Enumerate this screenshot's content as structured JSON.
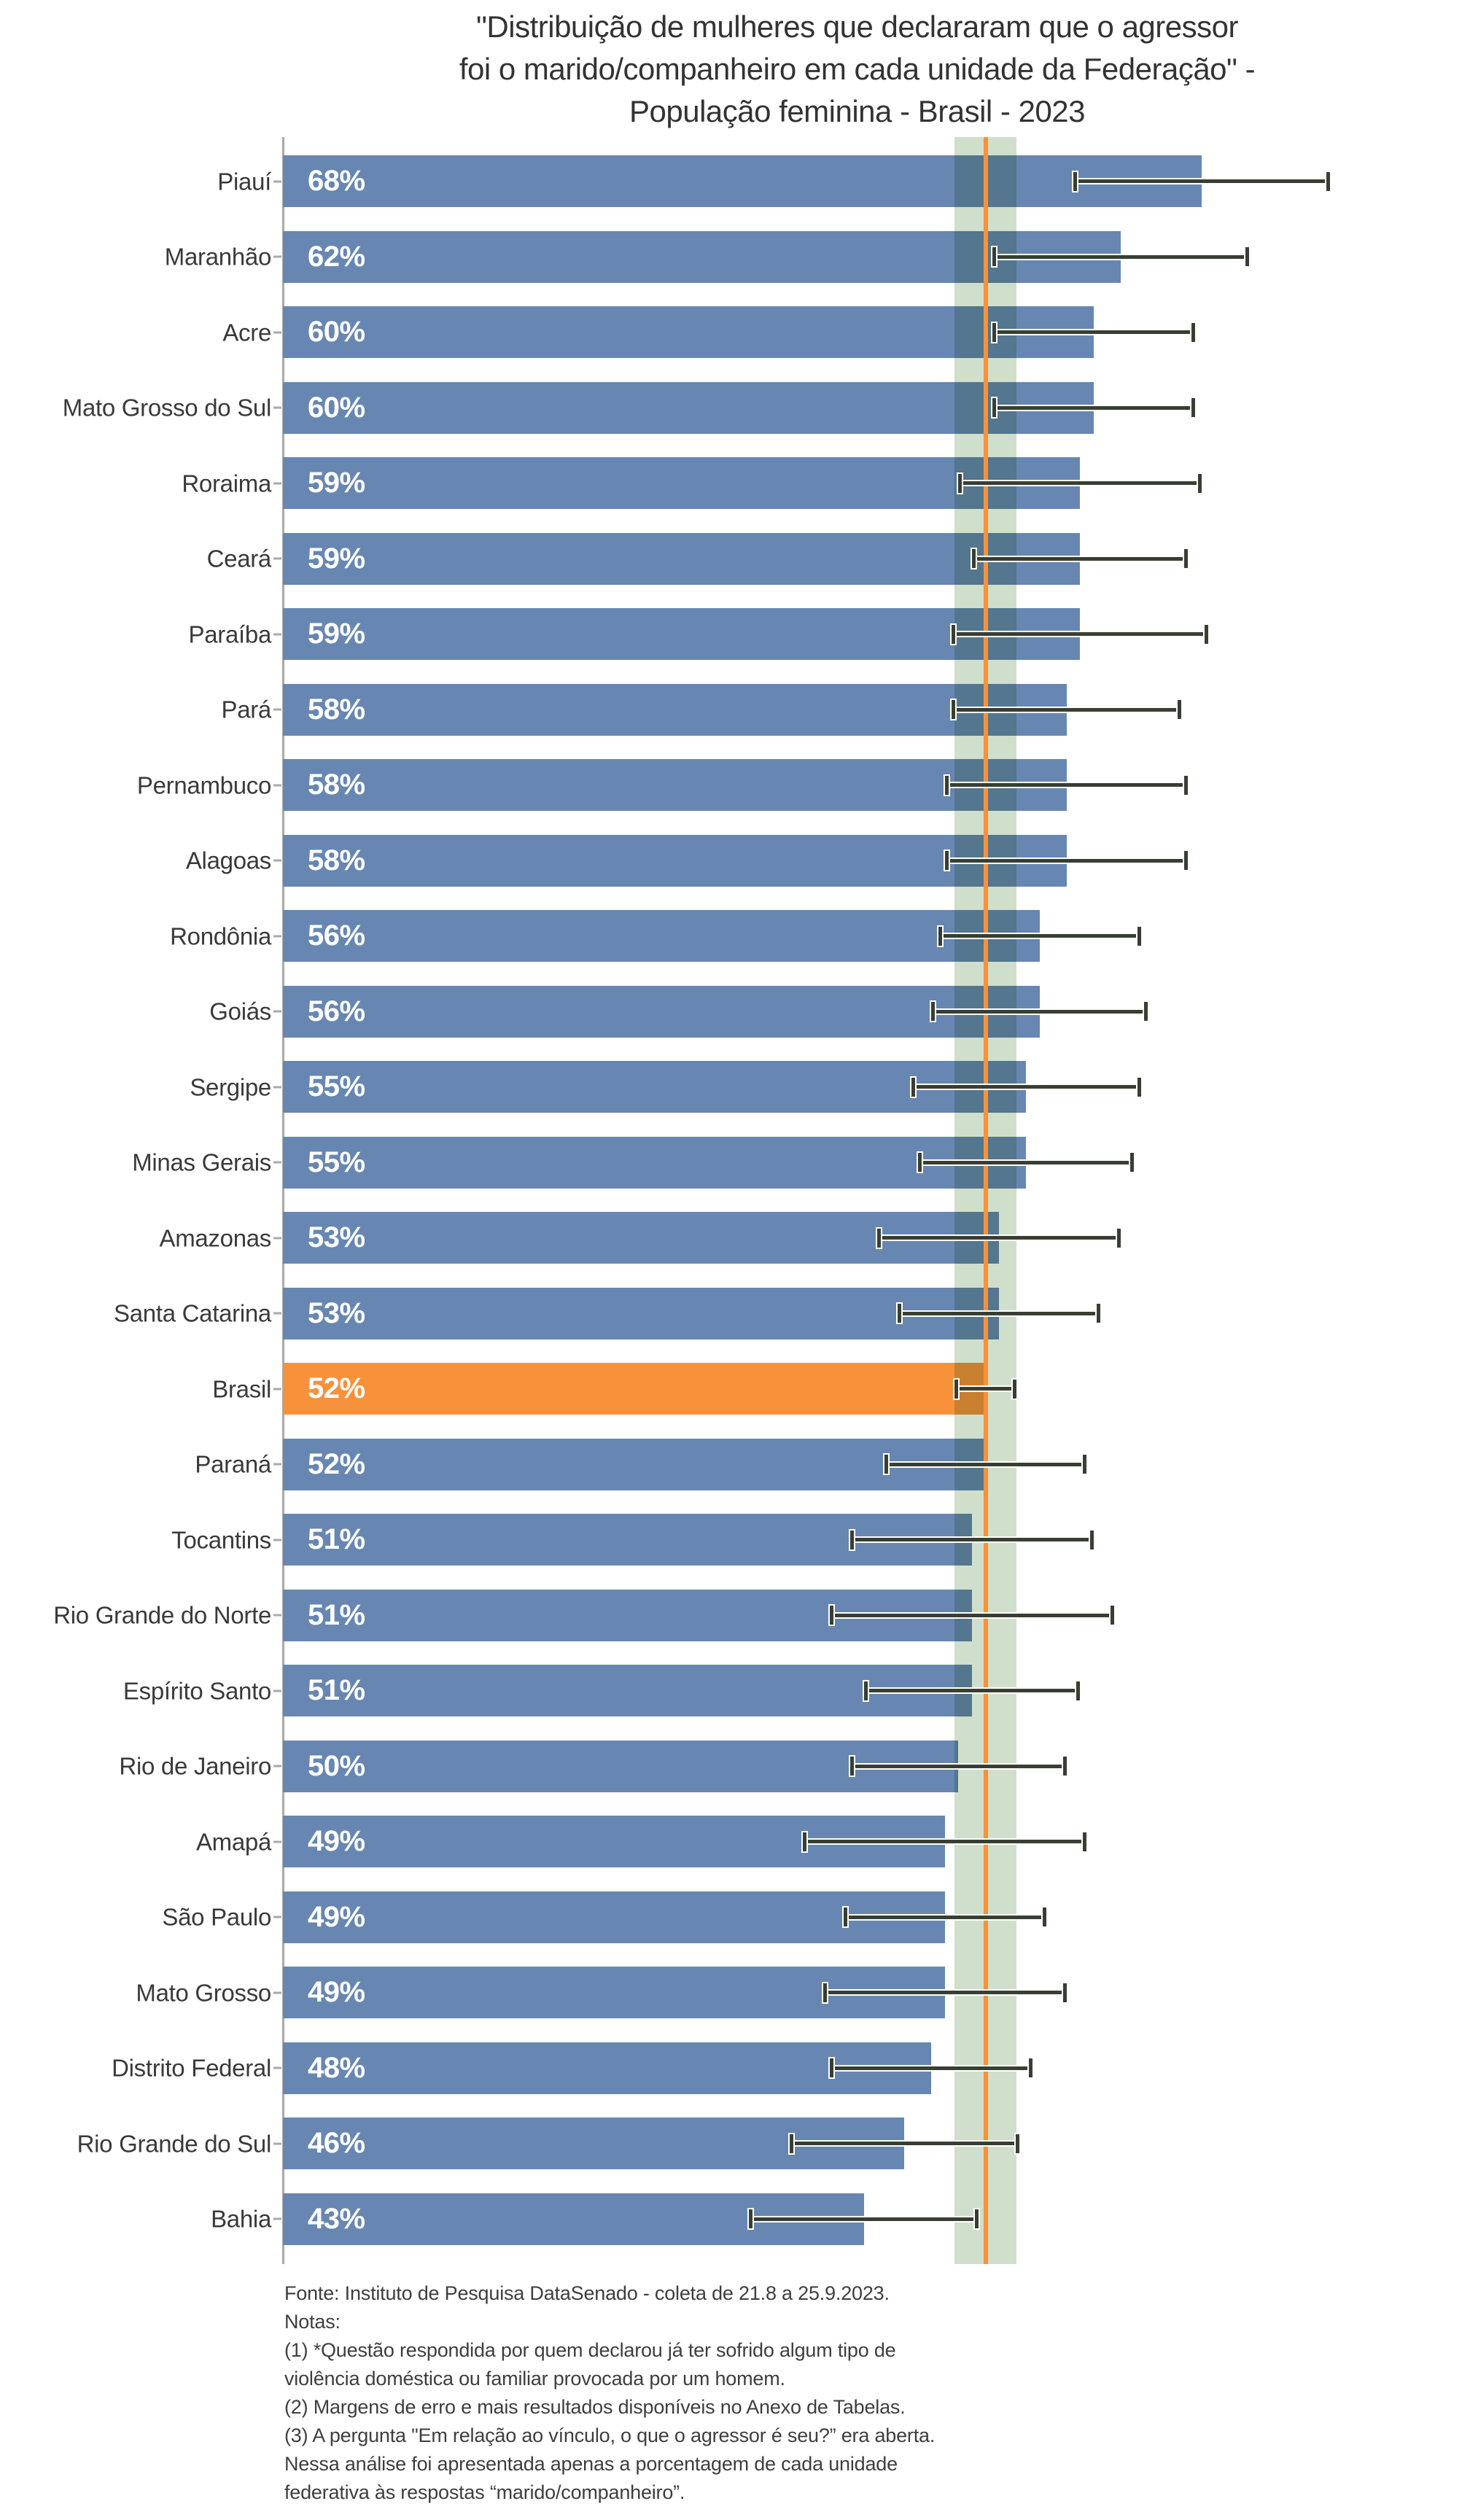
{
  "title": {
    "lines": [
      "\"Distribuição de mulheres que declararam que o agressor",
      "foi o marido/companheiro em cada unidade da Federação\" -",
      "População feminina - Brasil - 2023"
    ]
  },
  "chart_data": {
    "type": "bar",
    "orientation": "horizontal",
    "title": "\"Distribuição de mulheres que declararam que o agressor foi o marido/companheiro em cada unidade da Federação\" - População feminina - Brasil - 2023",
    "unit": "%",
    "categories": [
      "Piauí",
      "Maranhão",
      "Acre",
      "Mato Grosso do Sul",
      "Roraima",
      "Ceará",
      "Paraíba",
      "Pará",
      "Pernambuco",
      "Alagoas",
      "Rondônia",
      "Goiás",
      "Sergipe",
      "Minas Gerais",
      "Amazonas",
      "Santa Catarina",
      "Brasil",
      "Paraná",
      "Tocantins",
      "Rio Grande do Norte",
      "Espírito Santo",
      "Rio de Janeiro",
      "Amapá",
      "São Paulo",
      "Mato Grosso",
      "Distrito Federal",
      "Rio Grande do Sul",
      "Bahia"
    ],
    "values": [
      68,
      62,
      60,
      60,
      59,
      59,
      59,
      58,
      58,
      58,
      56,
      56,
      55,
      55,
      53,
      53,
      52,
      52,
      51,
      51,
      51,
      50,
      49,
      49,
      49,
      48,
      46,
      43
    ],
    "error_margins_estimated": [
      9.5,
      9.5,
      7.5,
      7.5,
      9,
      8,
      9.5,
      8.5,
      9,
      9,
      7.5,
      8,
      8.5,
      8,
      9,
      7.5,
      2.3,
      7.5,
      9,
      10.5,
      8,
      8,
      10.5,
      7.5,
      9,
      7.5,
      8.5,
      8.5
    ],
    "highlight_category": "Brasil",
    "reference_line": {
      "label": "Brasil",
      "value": 52
    },
    "confidence_band": {
      "from": 49.7,
      "to": 54.3
    },
    "axis": {
      "min": 0,
      "max": 85,
      "tick_labels_visible": false,
      "gridlines": false
    },
    "legend": "none"
  },
  "footer": {
    "lines": [
      "Fonte: Instituto de Pesquisa DataSenado - coleta de 21.8 a 25.9.2023.",
      "Notas:",
      "(1) *Questão respondida por quem declarou já ter sofrido algum tipo de",
      "violência doméstica ou familiar provocada por um homem.",
      "(2) Margens de erro e mais resultados disponíveis no Anexo de Tabelas.",
      "(3) A pergunta \"Em relação ao vínculo, o que o agressor é seu?” era aberta.",
      "Nessa análise foi apresentada apenas a porcentagem de cada unidade",
      "federativa às respostas “marido/companheiro”."
    ]
  },
  "colors": {
    "bar": "#6787B2",
    "highlight_bar": "#F7923A",
    "confidence_band": "#CFDFCB",
    "reference_line": "#F7923A",
    "error_bar": "#383F32",
    "axis": "#AAAAAA",
    "label_text": "#3A3A3A",
    "value_text": "#FFFFFF"
  }
}
